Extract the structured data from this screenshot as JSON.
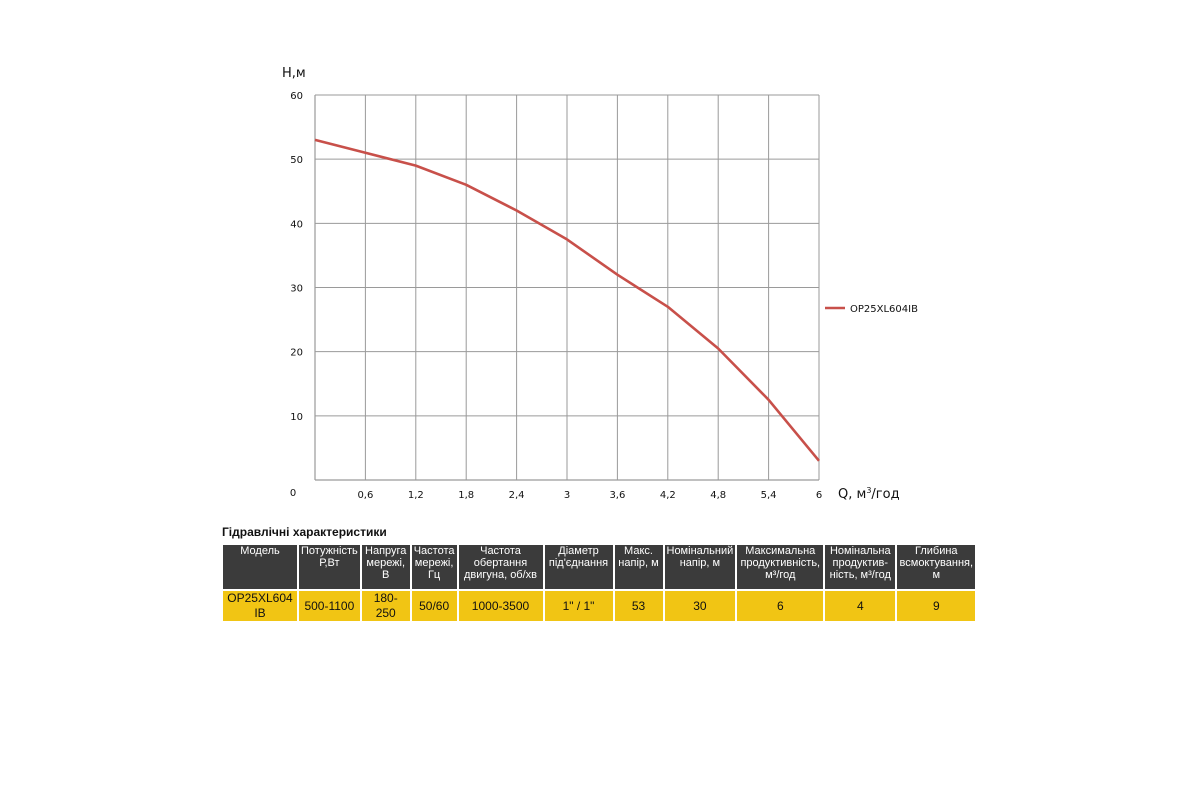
{
  "chart_data": {
    "type": "line",
    "ylabel": "H,м",
    "xlabel": "Q,  м³/год",
    "xlabel_parts": {
      "prefix": "Q,  м",
      "sup": "3",
      "suffix": "/год"
    },
    "origin_label": "0",
    "xlim": [
      0,
      6
    ],
    "ylim": [
      0,
      60
    ],
    "x_ticks": [
      "0,6",
      "1,2",
      "1,8",
      "2,4",
      "3",
      "3,6",
      "4,2",
      "4,8",
      "5,4",
      "6"
    ],
    "y_ticks": [
      "10",
      "20",
      "30",
      "40",
      "50",
      "60"
    ],
    "grid": true,
    "legend_position": "right",
    "series": [
      {
        "name": "OP25XL604IB",
        "color": "#c8504a",
        "x": [
          0,
          0.6,
          1.2,
          1.8,
          2.4,
          3.0,
          3.6,
          4.2,
          4.8,
          5.4,
          6.0
        ],
        "y": [
          53,
          51,
          49,
          46,
          42,
          37.5,
          32,
          27,
          20.5,
          12.5,
          3
        ]
      }
    ]
  },
  "table": {
    "title": "Гідравлічні характеристики",
    "header_bg": "#3b3b3b",
    "row_bg": "#f1c514",
    "headers": [
      "Модель",
      "Потужність Р,Вт",
      "Напруга мережі, В",
      "Частота мережі, Гц",
      "Частота обертання двигуна, об/хв",
      "Діаметр під'єднання",
      "Макс. напір, м",
      "Номінальний напір, м",
      "Максимальна продуктивність, м³/год",
      "Номінальна продуктив-ність, м³/год",
      "Глибина всмоктування, м"
    ],
    "row": [
      "OP25XL604 IB",
      "500-1100",
      "180-250",
      "50/60",
      "1000-3500",
      "1\" / 1\"",
      "53",
      "30",
      "6",
      "4",
      "9"
    ]
  }
}
